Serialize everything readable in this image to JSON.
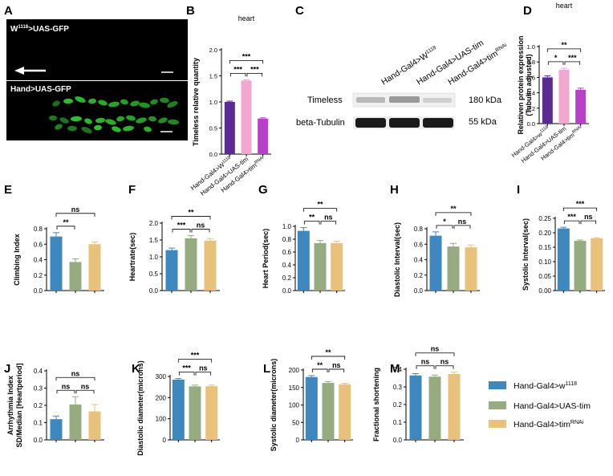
{
  "colors": {
    "blue": "#3f88bf",
    "green": "#96ab80",
    "tan": "#e8c27b",
    "purple": "#5b2a93",
    "pink": "#f1a7cf",
    "magenta": "#b640c9",
    "gfp": "#33cc33"
  },
  "legend": [
    {
      "label": "Hand-Gal4>w",
      "sup": "1118",
      "color": "blue"
    },
    {
      "label": "Hand-Gal4>UAS-tim",
      "sup": "",
      "color": "green"
    },
    {
      "label": "Hand-Gal4>tim",
      "sup": "RNAi",
      "color": "tan"
    }
  ],
  "micrographs": {
    "letter": "A",
    "top_label": "W",
    "top_sup": "1118",
    "top_suffix": ">UAS-GFP",
    "bottom_label": "Hand>UAS-GFP"
  },
  "western_blot": {
    "letter": "C",
    "lanes": [
      {
        "label": "Hand-Gal4>W",
        "sup": "1118"
      },
      {
        "label": "Hand-Gal4>UAS-tim",
        "sup": ""
      },
      {
        "label": "Hand-Gal4>tim",
        "sup": "RNAi"
      }
    ],
    "rows": [
      {
        "protein": "Timeless",
        "size": "180 kDa"
      },
      {
        "protein": "beta-Tubulin",
        "size": "55 kDa"
      }
    ]
  },
  "chart_data": [
    {
      "letter": "B",
      "type": "bar",
      "title": "heart",
      "ylabel": "Timeless relative quantity",
      "ylim": [
        0,
        2.0
      ],
      "ticks": [
        "0.0",
        "0.5",
        "1.0",
        "1.5",
        "2.0"
      ],
      "categories": [
        {
          "label": "Hand-Gal4>W",
          "sup": "1118"
        },
        {
          "label": "Hand-Gal4>UAS-tim",
          "sup": ""
        },
        {
          "label": "Hand-Gal4>tim",
          "sup": "RNAi"
        }
      ],
      "colors": [
        "purple",
        "pink",
        "magenta"
      ],
      "values": [
        1.0,
        1.41,
        0.68
      ],
      "errors": [
        0.015,
        0.015,
        0.015
      ],
      "significance": [
        {
          "a": 0,
          "b": 1,
          "label": "***"
        },
        {
          "a": 1,
          "b": 2,
          "label": "***"
        },
        {
          "a": 0,
          "b": 2,
          "label": "***"
        }
      ]
    },
    {
      "letter": "D",
      "type": "bar",
      "title": "heart",
      "ylabel": "Relativen protein expression",
      "ylabel2": "(Tubulin adjusted)",
      "ylim": [
        0,
        1.0
      ],
      "ticks": [
        "0.0",
        "0.2",
        "0.4",
        "0.6",
        "0.8",
        "1.0"
      ],
      "categories": [
        {
          "label": "Hand-Gal4>w",
          "sup": "1118"
        },
        {
          "label": "Hand-Gal4>UAS-tim",
          "sup": ""
        },
        {
          "label": "Hand-Gal4>tim",
          "sup": "RNAi"
        }
      ],
      "colors": [
        "purple",
        "pink",
        "magenta"
      ],
      "values": [
        0.6,
        0.7,
        0.44
      ],
      "errors": [
        0.02,
        0.02,
        0.02
      ],
      "significance": [
        {
          "a": 0,
          "b": 1,
          "label": "*"
        },
        {
          "a": 1,
          "b": 2,
          "label": "***"
        },
        {
          "a": 0,
          "b": 2,
          "label": "**"
        }
      ]
    },
    {
      "letter": "E",
      "type": "bar",
      "ylabel": "Climbing Index",
      "ylim": [
        0,
        0.8
      ],
      "ticks": [
        "0.0",
        "0.2",
        "0.4",
        "0.6",
        "0.8"
      ],
      "colors": [
        "blue",
        "green",
        "tan"
      ],
      "values": [
        0.7,
        0.37,
        0.6
      ],
      "errors": [
        0.05,
        0.04,
        0.03
      ],
      "significance": [
        {
          "a": 0,
          "b": 1,
          "label": "**"
        },
        {
          "a": 0,
          "b": 2,
          "label": "ns"
        }
      ]
    },
    {
      "letter": "F",
      "type": "bar",
      "ylabel": "Heartrate(sec)",
      "ylim": [
        0,
        2.0
      ],
      "ticks": [
        "0.0",
        "0.5",
        "1.0",
        "1.5",
        "2.0"
      ],
      "colors": [
        "blue",
        "green",
        "tan"
      ],
      "values": [
        1.2,
        1.55,
        1.48
      ],
      "errors": [
        0.06,
        0.08,
        0.06
      ],
      "significance": [
        {
          "a": 0,
          "b": 1,
          "label": "***"
        },
        {
          "a": 1,
          "b": 2,
          "label": "ns"
        },
        {
          "a": 0,
          "b": 2,
          "label": "**"
        }
      ]
    },
    {
      "letter": "G",
      "type": "bar",
      "ylabel": "Heart Period(sec)",
      "ylim": [
        0,
        1.0
      ],
      "ticks": [
        "0.0",
        "0.2",
        "0.4",
        "0.6",
        "0.8",
        "1.0"
      ],
      "colors": [
        "blue",
        "green",
        "tan"
      ],
      "values": [
        0.93,
        0.74,
        0.74
      ],
      "errors": [
        0.05,
        0.04,
        0.03
      ],
      "significance": [
        {
          "a": 0,
          "b": 1,
          "label": "**"
        },
        {
          "a": 1,
          "b": 2,
          "label": "ns"
        },
        {
          "a": 0,
          "b": 2,
          "label": "**"
        }
      ]
    },
    {
      "letter": "H",
      "type": "bar",
      "ylabel": "Diastolic Interval(sec)",
      "ylim": [
        0,
        0.8
      ],
      "ticks": [
        "0.0",
        "0.2",
        "0.4",
        "0.6",
        "0.8"
      ],
      "colors": [
        "blue",
        "green",
        "tan"
      ],
      "values": [
        0.71,
        0.57,
        0.56
      ],
      "errors": [
        0.05,
        0.04,
        0.03
      ],
      "significance": [
        {
          "a": 0,
          "b": 1,
          "label": "*"
        },
        {
          "a": 1,
          "b": 2,
          "label": "ns"
        },
        {
          "a": 0,
          "b": 2,
          "label": "**"
        }
      ]
    },
    {
      "letter": "I",
      "type": "bar",
      "ylabel": "Systolic Interval(sec)",
      "ylim": [
        0,
        0.25
      ],
      "ticks": [
        "0.00",
        "0.05",
        "0.10",
        "0.15",
        "0.20",
        "0.25"
      ],
      "colors": [
        "blue",
        "green",
        "tan"
      ],
      "values": [
        0.215,
        0.172,
        0.181
      ],
      "errors": [
        0.004,
        0.003,
        0.002
      ],
      "significance": [
        {
          "a": 0,
          "b": 1,
          "label": "***"
        },
        {
          "a": 1,
          "b": 2,
          "label": "ns"
        },
        {
          "a": 0,
          "b": 2,
          "label": "***"
        }
      ]
    },
    {
      "letter": "J",
      "type": "bar",
      "ylabel": "Arrhythmia Index",
      "ylabel2": "SD/Median [Heartperiod]",
      "ylim": [
        0,
        0.4
      ],
      "ticks": [
        "0.0",
        "0.1",
        "0.2",
        "0.3",
        "0.4"
      ],
      "colors": [
        "blue",
        "green",
        "tan"
      ],
      "values": [
        0.12,
        0.205,
        0.165
      ],
      "errors": [
        0.018,
        0.045,
        0.04
      ],
      "significance": [
        {
          "a": 0,
          "b": 1,
          "label": "ns"
        },
        {
          "a": 1,
          "b": 2,
          "label": "ns"
        },
        {
          "a": 0,
          "b": 2,
          "label": "ns"
        }
      ]
    },
    {
      "letter": "K",
      "type": "bar",
      "ylabel": "Diastolic diameter(microns)",
      "ylim": [
        0,
        300
      ],
      "ticks": [
        "0",
        "100",
        "200",
        "300"
      ],
      "colors": [
        "blue",
        "green",
        "tan"
      ],
      "values": [
        285,
        253,
        254
      ],
      "errors": [
        5,
        6,
        5
      ],
      "significance": [
        {
          "a": 0,
          "b": 1,
          "label": "***"
        },
        {
          "a": 1,
          "b": 2,
          "label": "ns"
        },
        {
          "a": 0,
          "b": 2,
          "label": "***"
        }
      ]
    },
    {
      "letter": "L",
      "type": "bar",
      "ylabel": "Systolic diameter(microns)",
      "ylim": [
        0,
        200
      ],
      "ticks": [
        "0",
        "50",
        "100",
        "150",
        "200"
      ],
      "colors": [
        "blue",
        "green",
        "tan"
      ],
      "values": [
        180,
        163,
        159
      ],
      "errors": [
        4,
        4,
        3
      ],
      "significance": [
        {
          "a": 0,
          "b": 1,
          "label": "**"
        },
        {
          "a": 1,
          "b": 2,
          "label": "ns"
        },
        {
          "a": 0,
          "b": 2,
          "label": "**"
        }
      ]
    },
    {
      "letter": "M",
      "type": "bar",
      "ylabel": "Fractional shortening",
      "ylim": [
        0,
        0.4
      ],
      "ticks": [
        "0.0",
        "0.1",
        "0.2",
        "0.3",
        "0.4"
      ],
      "colors": [
        "blue",
        "green",
        "tan"
      ],
      "values": [
        0.365,
        0.358,
        0.373
      ],
      "errors": [
        0.01,
        0.009,
        0.01
      ],
      "significance": [
        {
          "a": 0,
          "b": 1,
          "label": "ns"
        },
        {
          "a": 1,
          "b": 2,
          "label": "ns"
        },
        {
          "a": 0,
          "b": 2,
          "label": "ns"
        }
      ]
    }
  ]
}
